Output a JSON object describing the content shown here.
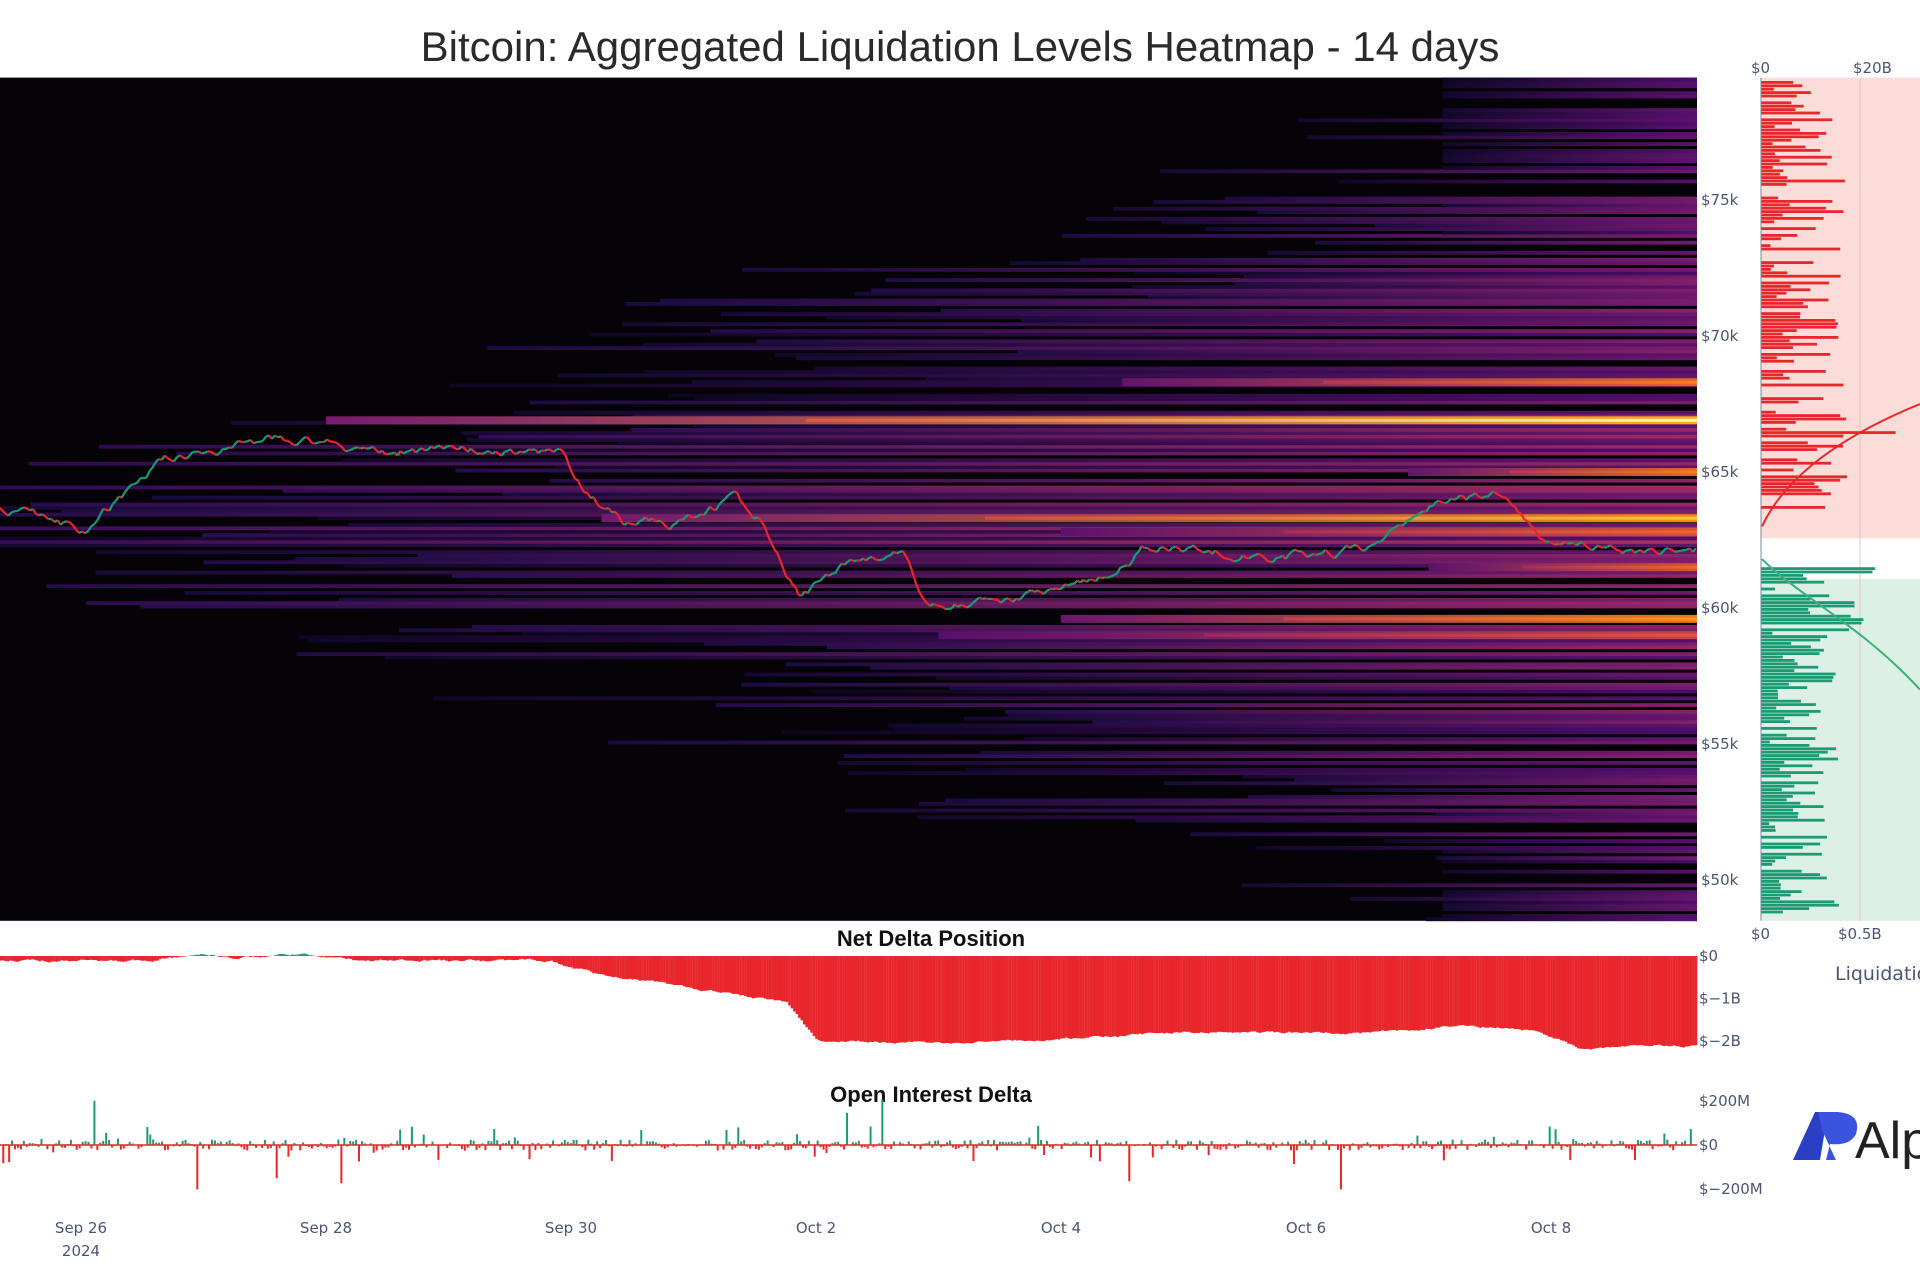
{
  "chart_data": [
    {
      "type": "heatmap",
      "title": "Bitcoin: Aggregated Liquidation Levels Heatmap - 14 days",
      "x_range": [
        "2024-09-25T08:00",
        "2024-10-09T04:30"
      ],
      "y_range": [
        48500,
        79500
      ],
      "x_ticks": [
        "Sep 26",
        "Sep 28",
        "Sep 30",
        "Oct 2",
        "Oct 4",
        "Oct 6",
        "Oct 8"
      ],
      "x_tick_year": "2024",
      "y_ticks": [
        "$50k",
        "$55k",
        "$60k",
        "$65k",
        "$70k",
        "$75k"
      ],
      "y_tick_values": [
        50000,
        55000,
        60000,
        65000,
        70000,
        75000
      ],
      "colorscale": "inferno",
      "bright_bands": [
        {
          "price": 66900,
          "start": "2024-09-28T00:00",
          "intensity": 1.0
        },
        {
          "price": 68300,
          "start": "2024-10-04T12:00",
          "intensity": 0.85
        },
        {
          "price": 65000,
          "start": "2024-10-06T20:00",
          "intensity": 0.85
        },
        {
          "price": 63300,
          "start": "2024-09-30T06:00",
          "intensity": 0.95
        },
        {
          "price": 62800,
          "start": "2024-10-04T00:00",
          "intensity": 0.8
        },
        {
          "price": 61500,
          "start": "2024-10-07T00:00",
          "intensity": 0.8
        },
        {
          "price": 59600,
          "start": "2024-10-04T00:00",
          "intensity": 0.9
        },
        {
          "price": 59000,
          "start": "2024-10-03T00:00",
          "intensity": 0.75
        }
      ],
      "price_series": [
        [
          "2024-09-25T08:00",
          63700
        ],
        [
          "2024-09-26T01:00",
          62900
        ],
        [
          "2024-09-26T16:30",
          65500
        ],
        [
          "2024-09-27T15:00",
          66250
        ],
        [
          "2024-09-28T08:00",
          65800
        ],
        [
          "2024-09-29T22:00",
          65700
        ],
        [
          "2024-09-30T02:00",
          64450
        ],
        [
          "2024-09-30T10:00",
          63200
        ],
        [
          "2024-09-30T19:00",
          63100
        ],
        [
          "2024-10-01T08:00",
          64000
        ],
        [
          "2024-10-01T14:00",
          63000
        ],
        [
          "2024-10-01T21:00",
          60300
        ],
        [
          "2024-10-02T06:00",
          61650
        ],
        [
          "2024-10-02T17:00",
          62100
        ],
        [
          "2024-10-02T21:00",
          60200
        ],
        [
          "2024-10-03T14:00",
          60200
        ],
        [
          "2024-10-04T09:00",
          61200
        ],
        [
          "2024-10-04T17:00",
          62300
        ],
        [
          "2024-10-05T19:00",
          61900
        ],
        [
          "2024-10-06T12:00",
          62100
        ],
        [
          "2024-10-07T00:00",
          63700
        ],
        [
          "2024-10-07T14:00",
          64200
        ],
        [
          "2024-10-08T00:00",
          62300
        ],
        [
          "2024-10-08T15:00",
          62100
        ],
        [
          "2024-10-09T04:00",
          62200
        ]
      ],
      "up_color": "#1a9b74",
      "down_color": "#e8262b"
    },
    {
      "type": "bar",
      "orientation": "horizontal",
      "title": "Liquidation profile",
      "xlabel": "Liquidatio",
      "short_axis_ticks": [
        "$0",
        "$20B"
      ],
      "long_axis_ticks": [
        "$0",
        "$0.5B"
      ],
      "short_color": "#e8262b",
      "long_color": "#1a9b74",
      "short_bg": "#fcdcd8",
      "long_bg": "#dcf0e6"
    },
    {
      "type": "area",
      "title": "Net Delta Position",
      "y_ticks": [
        "$0",
        "$−1B",
        "$−2B"
      ],
      "y_tick_values": [
        0,
        -1,
        -2
      ],
      "units": "billion USD",
      "series": [
        [
          "2024-09-25T08:00",
          -0.1
        ],
        [
          "2024-09-26T12:00",
          -0.12
        ],
        [
          "2024-09-27T00:00",
          0.05
        ],
        [
          "2024-09-27T06:00",
          -0.05
        ],
        [
          "2024-09-27T18:00",
          0.06
        ],
        [
          "2024-09-28T06:00",
          -0.1
        ],
        [
          "2024-09-29T20:00",
          -0.12
        ],
        [
          "2024-09-30T06:00",
          -0.45
        ],
        [
          "2024-10-01T00:00",
          -0.75
        ],
        [
          "2024-10-01T18:00",
          -1.1
        ],
        [
          "2024-10-02T00:00",
          -2.0
        ],
        [
          "2024-10-03T00:00",
          -2.05
        ],
        [
          "2024-10-04T00:00",
          -1.95
        ],
        [
          "2024-10-05T00:00",
          -1.8
        ],
        [
          "2024-10-06T12:00",
          -1.8
        ],
        [
          "2024-10-07T06:00",
          -1.6
        ],
        [
          "2024-10-07T20:00",
          -1.75
        ],
        [
          "2024-10-08T06:00",
          -2.2
        ],
        [
          "2024-10-09T04:00",
          -2.1
        ]
      ],
      "positive_color": "#1a9b74",
      "negative_color": "#e8262b"
    },
    {
      "type": "bar",
      "title": "Open Interest Delta",
      "y_ticks": [
        "$200M",
        "$0",
        "$−200M"
      ],
      "y_tick_values": [
        200,
        0,
        -200
      ],
      "units": "million USD",
      "positive_color": "#1a9b74",
      "negative_color": "#e8262b"
    }
  ],
  "logo": {
    "text": "Alp",
    "mark": "AP",
    "color": "#2b3fc4"
  }
}
